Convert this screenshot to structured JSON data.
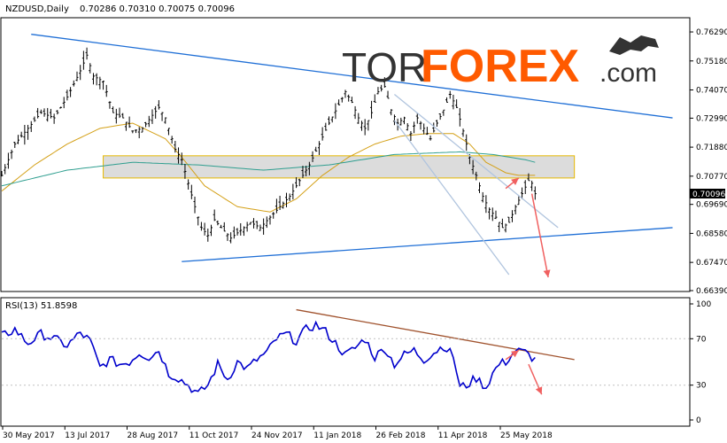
{
  "header": {
    "symbol": "NZDUSD,Daily",
    "ohlc": "0.70286 0.70310 0.70075 0.70096"
  },
  "watermark": {
    "part1": "TOR",
    "part2": "FOREX",
    "part3": ".com"
  },
  "colors": {
    "price": "#000000",
    "candle_up": "#000000",
    "trendline": "#1f6fd6",
    "ma_fast": "#d4a017",
    "ma_slow": "#2e9e8f",
    "zone_fill": "#d3d3d3",
    "zone_border": "#e6b800",
    "arrow": "#f06060",
    "rsi_line": "#0000cc",
    "rsi_trend": "#a0522d",
    "brand_orange": "#ff5a00"
  },
  "chart_data": [
    {
      "type": "line",
      "name": "price",
      "current_price_label": "0.70096",
      "y_ticks": [
        "0.76290",
        "0.75180",
        "0.74070",
        "0.72990",
        "0.71880",
        "0.70770",
        "0.69690",
        "0.68580",
        "0.67470",
        "0.66390"
      ],
      "x_ticks": [
        "30 May 2017",
        "13 Jul 2017",
        "28 Aug 2017",
        "11 Oct 2017",
        "24 Nov 2017",
        "11 Jan 2018",
        "26 Feb 2018",
        "11 Apr 2018",
        "25 May 2018"
      ],
      "ylim": [
        0.6639,
        0.768
      ],
      "close_path": [
        [
          0,
          0.708
        ],
        [
          4,
          0.72
        ],
        [
          8,
          0.726
        ],
        [
          12,
          0.732
        ],
        [
          16,
          0.73
        ],
        [
          20,
          0.738
        ],
        [
          24,
          0.748
        ],
        [
          26,
          0.754
        ],
        [
          28,
          0.746
        ],
        [
          31,
          0.744
        ],
        [
          34,
          0.732
        ],
        [
          37,
          0.73
        ],
        [
          40,
          0.725
        ],
        [
          43,
          0.726
        ],
        [
          46,
          0.731
        ],
        [
          48,
          0.734
        ],
        [
          50,
          0.73
        ],
        [
          53,
          0.718
        ],
        [
          55,
          0.714
        ],
        [
          57,
          0.705
        ],
        [
          59,
          0.696
        ],
        [
          61,
          0.688
        ],
        [
          63,
          0.685
        ],
        [
          65,
          0.691
        ],
        [
          67,
          0.688
        ],
        [
          70,
          0.684
        ],
        [
          73,
          0.687
        ],
        [
          76,
          0.69
        ],
        [
          79,
          0.688
        ],
        [
          82,
          0.692
        ],
        [
          85,
          0.696
        ],
        [
          88,
          0.7
        ],
        [
          91,
          0.706
        ],
        [
          94,
          0.712
        ],
        [
          97,
          0.72
        ],
        [
          100,
          0.728
        ],
        [
          103,
          0.735
        ],
        [
          105,
          0.74
        ],
        [
          107,
          0.736
        ],
        [
          109,
          0.73
        ],
        [
          111,
          0.726
        ],
        [
          113,
          0.732
        ],
        [
          115,
          0.74
        ],
        [
          117,
          0.742
        ],
        [
          119,
          0.733
        ],
        [
          121,
          0.728
        ],
        [
          123,
          0.73
        ],
        [
          125,
          0.724
        ],
        [
          127,
          0.73
        ],
        [
          129,
          0.726
        ],
        [
          131,
          0.722
        ],
        [
          133,
          0.728
        ],
        [
          135,
          0.733
        ],
        [
          137,
          0.739
        ],
        [
          139,
          0.734
        ],
        [
          141,
          0.725
        ],
        [
          143,
          0.715
        ],
        [
          145,
          0.708
        ],
        [
          147,
          0.7
        ],
        [
          149,
          0.695
        ],
        [
          151,
          0.692
        ],
        [
          153,
          0.688
        ],
        [
          155,
          0.69
        ],
        [
          157,
          0.696
        ],
        [
          159,
          0.701
        ],
        [
          161,
          0.706
        ],
        [
          162,
          0.705
        ],
        [
          163,
          0.701
        ]
      ],
      "ma_fast_path": [
        [
          0,
          0.702
        ],
        [
          10,
          0.712
        ],
        [
          20,
          0.72
        ],
        [
          30,
          0.726
        ],
        [
          40,
          0.728
        ],
        [
          50,
          0.722
        ],
        [
          55,
          0.715
        ],
        [
          62,
          0.704
        ],
        [
          72,
          0.696
        ],
        [
          82,
          0.694
        ],
        [
          90,
          0.699
        ],
        [
          98,
          0.708
        ],
        [
          106,
          0.715
        ],
        [
          114,
          0.72
        ],
        [
          122,
          0.723
        ],
        [
          130,
          0.724
        ],
        [
          138,
          0.724
        ],
        [
          143,
          0.72
        ],
        [
          148,
          0.713
        ],
        [
          154,
          0.709
        ],
        [
          158,
          0.708
        ],
        [
          163,
          0.708
        ]
      ],
      "ma_slow_path": [
        [
          0,
          0.704
        ],
        [
          20,
          0.71
        ],
        [
          40,
          0.713
        ],
        [
          60,
          0.712
        ],
        [
          80,
          0.71
        ],
        [
          100,
          0.712
        ],
        [
          120,
          0.716
        ],
        [
          140,
          0.717
        ],
        [
          150,
          0.716
        ],
        [
          160,
          0.714
        ],
        [
          163,
          0.713
        ]
      ],
      "zone": {
        "from": 0.707,
        "to": 0.7155,
        "start_index": 31,
        "end_index": 175
      },
      "trendlines": [
        {
          "from": [
            9,
            0.762
          ],
          "to": [
            205,
            0.73
          ],
          "color": "#1f6fd6"
        },
        {
          "from": [
            55,
            0.675
          ],
          "to": [
            205,
            0.688
          ],
          "color": "#1f6fd6"
        },
        {
          "from": [
            120,
            0.739
          ],
          "to": [
            170,
            0.688
          ],
          "color": "#b0c4de"
        },
        {
          "from": [
            120,
            0.729
          ],
          "to": [
            155,
            0.67
          ],
          "color": "#b0c4de"
        }
      ],
      "arrows": [
        {
          "from": [
            154,
            0.703
          ],
          "to": [
            158,
            0.707
          ]
        },
        {
          "from": [
            162,
            0.701
          ],
          "to": [
            167,
            0.669
          ]
        }
      ]
    },
    {
      "type": "line",
      "name": "RSI(13)",
      "label": "RSI(13) 51.8598",
      "y_ticks": [
        "100",
        "70",
        "30",
        "0"
      ],
      "ylim": [
        0,
        100
      ],
      "values_path": [
        [
          0,
          72
        ],
        [
          4,
          78
        ],
        [
          8,
          66
        ],
        [
          12,
          74
        ],
        [
          16,
          70
        ],
        [
          20,
          64
        ],
        [
          24,
          75
        ],
        [
          27,
          68
        ],
        [
          30,
          45
        ],
        [
          33,
          52
        ],
        [
          36,
          48
        ],
        [
          39,
          50
        ],
        [
          42,
          58
        ],
        [
          45,
          54
        ],
        [
          48,
          60
        ],
        [
          51,
          40
        ],
        [
          54,
          36
        ],
        [
          57,
          30
        ],
        [
          60,
          22
        ],
        [
          63,
          30
        ],
        [
          66,
          48
        ],
        [
          69,
          35
        ],
        [
          72,
          50
        ],
        [
          75,
          44
        ],
        [
          78,
          52
        ],
        [
          81,
          58
        ],
        [
          84,
          70
        ],
        [
          87,
          74
        ],
        [
          90,
          68
        ],
        [
          93,
          78
        ],
        [
          96,
          82
        ],
        [
          99,
          76
        ],
        [
          102,
          66
        ],
        [
          105,
          56
        ],
        [
          108,
          62
        ],
        [
          111,
          70
        ],
        [
          114,
          54
        ],
        [
          117,
          62
        ],
        [
          120,
          48
        ],
        [
          123,
          56
        ],
        [
          126,
          60
        ],
        [
          129,
          52
        ],
        [
          132,
          58
        ],
        [
          135,
          64
        ],
        [
          138,
          55
        ],
        [
          140,
          28
        ],
        [
          142,
          30
        ],
        [
          145,
          36
        ],
        [
          148,
          28
        ],
        [
          150,
          40
        ],
        [
          152,
          48
        ],
        [
          154,
          50
        ],
        [
          157,
          60
        ],
        [
          160,
          58
        ],
        [
          163,
          52
        ]
      ],
      "trendline": {
        "from": [
          90,
          95
        ],
        "to": [
          175,
          52
        ]
      },
      "arrows": [
        {
          "from": [
            154,
            52
          ],
          "to": [
            158,
            60
          ]
        },
        {
          "from": [
            161,
            48
          ],
          "to": [
            165,
            22
          ]
        }
      ]
    }
  ]
}
